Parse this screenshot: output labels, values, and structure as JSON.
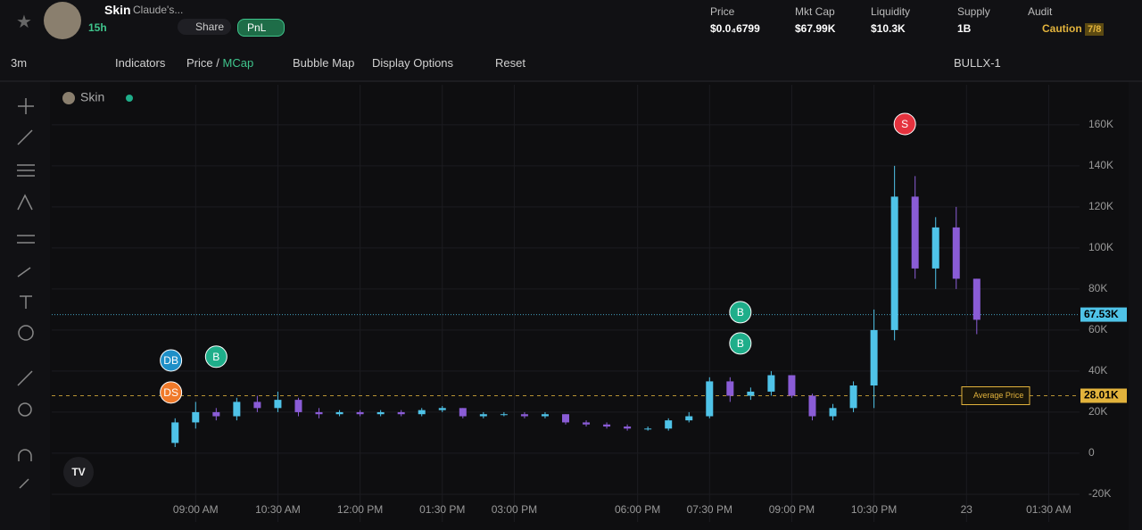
{
  "header": {
    "token": "Skin",
    "subtitle": "Claude's...",
    "age": "15h",
    "share": "Share",
    "pnl": "PnL",
    "stats": [
      {
        "label": "Price",
        "value": "$0.0₄6799"
      },
      {
        "label": "Mkt Cap",
        "value": "$67.99K"
      },
      {
        "label": "Liquidity",
        "value": "$10.3K"
      },
      {
        "label": "Supply",
        "value": "1B"
      }
    ],
    "audit": {
      "label": "Audit",
      "value": "Caution",
      "badge": "7/8"
    }
  },
  "toolbar": {
    "interval": "3m",
    "indicators": "Indicators",
    "price": "Price",
    "separator": "/",
    "mcap": "MCap",
    "bubble": "Bubble Map",
    "display": "Display Options",
    "reset": "Reset",
    "pair": "BULLX-1"
  },
  "chart_data": {
    "type": "candlestick",
    "legend": "Skin",
    "up_color": "#4fc3e8",
    "down_color": "#8a5cd6",
    "x": [
      12,
      14,
      16,
      18,
      20,
      22,
      24,
      26,
      28,
      30,
      32,
      34,
      36,
      38,
      40,
      42,
      44,
      46,
      48,
      50,
      52,
      54,
      56,
      58,
      60,
      62,
      64,
      66,
      68,
      70,
      72,
      74,
      76,
      78,
      80,
      82,
      84,
      86,
      88,
      90
    ],
    "open": [
      5000,
      15000,
      20000,
      18000,
      25000,
      22000,
      26000,
      20000,
      19000,
      20000,
      19000,
      20000,
      19000,
      21000,
      22000,
      18000,
      19000,
      19000,
      18000,
      19000,
      15000,
      14000,
      13000,
      12000,
      12000,
      16000,
      18000,
      35000,
      28000,
      30000,
      38000,
      28000,
      18000,
      22000,
      33000,
      60000,
      125000,
      90000,
      110000,
      85000
    ],
    "close": [
      15000,
      20000,
      18000,
      25000,
      22000,
      26000,
      20000,
      19000,
      20000,
      19000,
      20000,
      19000,
      21000,
      22000,
      18000,
      19000,
      19000,
      18000,
      19000,
      15000,
      14000,
      13000,
      12000,
      12000,
      16000,
      18000,
      35000,
      28000,
      30000,
      38000,
      28000,
      18000,
      22000,
      33000,
      60000,
      125000,
      90000,
      110000,
      85000,
      65000
    ],
    "high": [
      17000,
      25000,
      22000,
      27000,
      28000,
      30000,
      27000,
      22000,
      21000,
      21000,
      21000,
      21000,
      22000,
      23000,
      22000,
      20000,
      20000,
      20000,
      20000,
      19000,
      16000,
      15000,
      14000,
      13000,
      17000,
      20000,
      37000,
      37000,
      32000,
      40000,
      38000,
      29000,
      24000,
      35000,
      70000,
      140000,
      135000,
      115000,
      120000,
      85000
    ],
    "low": [
      3000,
      12000,
      16000,
      16000,
      20000,
      20000,
      18000,
      17000,
      18000,
      18000,
      18000,
      18000,
      18000,
      20000,
      17000,
      17000,
      18000,
      17000,
      17000,
      14000,
      13000,
      12000,
      11000,
      11000,
      11000,
      15000,
      17000,
      25000,
      26000,
      28000,
      27000,
      16000,
      16000,
      20000,
      22000,
      55000,
      85000,
      80000,
      80000,
      58000
    ],
    "xlim": [
      0,
      100
    ],
    "ylim": [
      -33500,
      179500
    ],
    "xticks": [
      {
        "value": 14,
        "label": "09:00 AM"
      },
      {
        "value": 22,
        "label": "10:30 AM"
      },
      {
        "value": 30,
        "label": "12:00 PM"
      },
      {
        "value": 38,
        "label": "01:30 PM"
      },
      {
        "value": 45,
        "label": "03:00 PM"
      },
      {
        "value": 57,
        "label": "06:00 PM"
      },
      {
        "value": 64,
        "label": "07:30 PM"
      },
      {
        "value": 72,
        "label": "09:00 PM"
      },
      {
        "value": 80,
        "label": "10:30 PM"
      },
      {
        "value": 89,
        "label": "23"
      },
      {
        "value": 97,
        "label": "01:30 AM"
      }
    ],
    "yticks": [
      {
        "value": -20000,
        "label": "-20K"
      },
      0,
      {
        "value": 20000,
        "label": "20K"
      },
      {
        "value": 40000,
        "label": "40K"
      },
      {
        "value": 60000,
        "label": "60K"
      },
      {
        "value": 80000,
        "label": "80K"
      },
      {
        "value": 100000,
        "label": "100K"
      },
      {
        "value": 120000,
        "label": "120K"
      },
      {
        "value": 140000,
        "label": "140K"
      },
      {
        "value": 160000,
        "label": "160K"
      }
    ],
    "grid": true,
    "current_price": {
      "value": 67530,
      "label": "67.53K",
      "color": "#4fc3e8"
    },
    "average_price": {
      "value": 28010,
      "label": "28.01K",
      "name": "Average Price",
      "color": "#e2b33c"
    },
    "markers": [
      {
        "label": "DB",
        "x": 11.6,
        "y": 45200,
        "color": "#1f8fc7"
      },
      {
        "label": "DS",
        "x": 11.6,
        "y": 29600,
        "color": "#f07a2a"
      },
      {
        "label": "B",
        "x": 16,
        "y": 47000,
        "color": "#1fae8a"
      },
      {
        "label": "B",
        "x": 67,
        "y": 68700,
        "color": "#1fae8a"
      },
      {
        "label": "B",
        "x": 67,
        "y": 53500,
        "color": "#1fae8a"
      },
      {
        "label": "S",
        "x": 83,
        "y": 160400,
        "color": "#e5323e"
      }
    ]
  }
}
